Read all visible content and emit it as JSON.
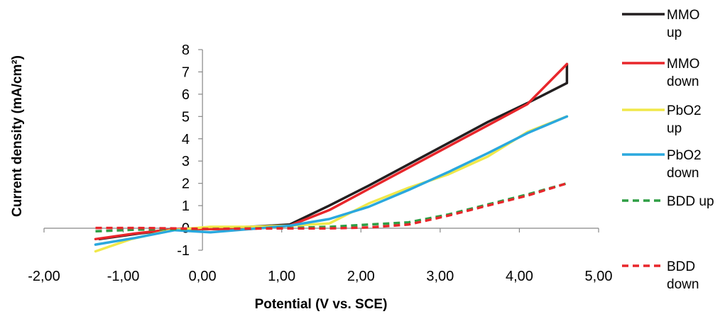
{
  "chart_data": {
    "type": "line",
    "xlabel": "Potential (V vs. SCE)",
    "ylabel": "Current density (mA/cm²)",
    "xlim": [
      -2,
      5
    ],
    "ylim": [
      -1,
      8
    ],
    "x_ticks": [
      "-2,00",
      "-1,00",
      "0,00",
      "1,00",
      "2,00",
      "3,00",
      "4,00",
      "5,00"
    ],
    "y_ticks": [
      "-1",
      "0",
      "1",
      "2",
      "3",
      "4",
      "5",
      "6",
      "7",
      "8"
    ],
    "grid": false,
    "legend_position": "right",
    "series": [
      {
        "name": "MMO up",
        "legend_lines": [
          "MMO",
          "up"
        ],
        "color": "#231f20",
        "dash": "solid",
        "points": [
          [
            -1.3,
            -0.5
          ],
          [
            -0.8,
            -0.25
          ],
          [
            -0.3,
            -0.05
          ],
          [
            0.1,
            0.0
          ],
          [
            0.6,
            0.05
          ],
          [
            1.1,
            0.15
          ],
          [
            1.6,
            1.0
          ],
          [
            2.1,
            1.9
          ],
          [
            2.6,
            2.85
          ],
          [
            3.1,
            3.8
          ],
          [
            3.6,
            4.75
          ],
          [
            4.1,
            5.6
          ],
          [
            4.6,
            6.5
          ],
          [
            4.6,
            7.35
          ]
        ]
      },
      {
        "name": "MMO down",
        "legend_lines": [
          "MMO",
          "down"
        ],
        "color": "#e8262b",
        "dash": "solid",
        "points": [
          [
            -1.35,
            -0.5
          ],
          [
            -0.85,
            -0.25
          ],
          [
            -0.35,
            -0.05
          ],
          [
            0.1,
            -0.05
          ],
          [
            0.6,
            -0.05
          ],
          [
            1.1,
            0.1
          ],
          [
            1.6,
            0.8
          ],
          [
            2.1,
            1.75
          ],
          [
            2.6,
            2.7
          ],
          [
            3.1,
            3.65
          ],
          [
            3.6,
            4.6
          ],
          [
            4.1,
            5.55
          ],
          [
            4.6,
            7.35
          ]
        ]
      },
      {
        "name": "PbO2 up",
        "legend_lines": [
          "PbO2",
          "up"
        ],
        "color": "#f0e84a",
        "dash": "solid",
        "points": [
          [
            -1.35,
            -1.05
          ],
          [
            -0.9,
            -0.5
          ],
          [
            -0.4,
            -0.1
          ],
          [
            0.1,
            0.05
          ],
          [
            0.6,
            0.05
          ],
          [
            1.1,
            0.1
          ],
          [
            1.6,
            0.2
          ],
          [
            2.1,
            1.1
          ],
          [
            2.6,
            1.8
          ],
          [
            3.1,
            2.4
          ],
          [
            3.6,
            3.2
          ],
          [
            4.1,
            4.3
          ],
          [
            4.6,
            5.0
          ]
        ]
      },
      {
        "name": "PbO2 down",
        "legend_lines": [
          "PbO2",
          "down"
        ],
        "color": "#2aa8de",
        "dash": "solid",
        "points": [
          [
            -1.35,
            -0.75
          ],
          [
            -0.85,
            -0.45
          ],
          [
            -0.35,
            -0.1
          ],
          [
            0.1,
            -0.2
          ],
          [
            0.6,
            -0.05
          ],
          [
            1.1,
            0.1
          ],
          [
            1.6,
            0.4
          ],
          [
            2.1,
            0.95
          ],
          [
            2.6,
            1.7
          ],
          [
            3.1,
            2.5
          ],
          [
            3.6,
            3.35
          ],
          [
            4.1,
            4.25
          ],
          [
            4.6,
            5.0
          ]
        ]
      },
      {
        "name": "BDD up",
        "legend_lines": [
          "BDD up"
        ],
        "color": "#2e9e44",
        "dash": "dashed",
        "points": [
          [
            -1.35,
            -0.15
          ],
          [
            -0.85,
            -0.08
          ],
          [
            -0.35,
            -0.05
          ],
          [
            0.1,
            -0.05
          ],
          [
            0.6,
            -0.02
          ],
          [
            1.1,
            0.0
          ],
          [
            1.6,
            0.05
          ],
          [
            2.1,
            0.15
          ],
          [
            2.6,
            0.25
          ],
          [
            3.1,
            0.6
          ],
          [
            3.6,
            1.05
          ],
          [
            4.1,
            1.5
          ],
          [
            4.6,
            2.0
          ]
        ]
      },
      {
        "name": "BDD down",
        "legend_lines": [
          "BDD",
          "down"
        ],
        "color": "#e8262b",
        "dash": "dashed",
        "points": [
          [
            -1.35,
            0.0
          ],
          [
            -0.85,
            0.0
          ],
          [
            -0.35,
            -0.02
          ],
          [
            0.1,
            -0.05
          ],
          [
            0.6,
            -0.03
          ],
          [
            1.1,
            -0.02
          ],
          [
            1.6,
            -0.02
          ],
          [
            2.1,
            0.02
          ],
          [
            2.6,
            0.15
          ],
          [
            3.1,
            0.55
          ],
          [
            3.6,
            1.0
          ],
          [
            4.1,
            1.45
          ],
          [
            4.6,
            2.0
          ]
        ]
      }
    ]
  }
}
